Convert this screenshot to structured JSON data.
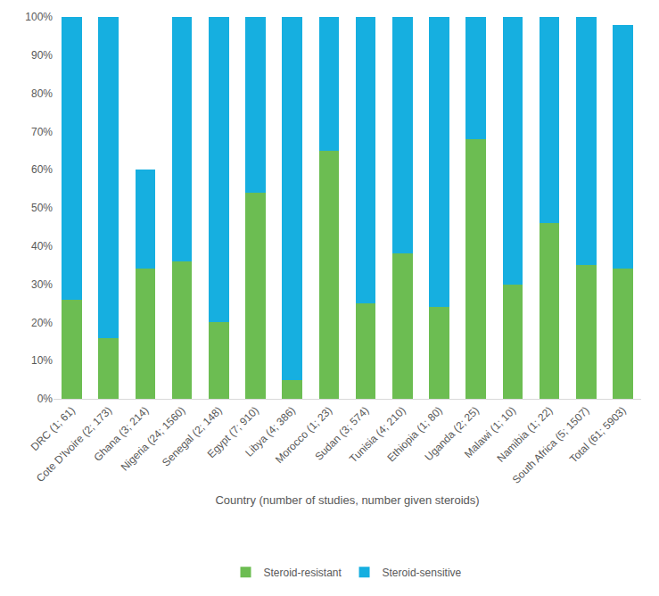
{
  "chart_data": {
    "type": "bar",
    "stacked": true,
    "grid": false,
    "legend": "bottom",
    "x_label": "Country (number of studies, number given steroids)",
    "categories": [
      "DRC (1; 61)",
      "Cote D'Ivoire (2; 173)",
      "Ghana (3; 214)",
      "Nigeria (24; 1560)",
      "Senegal (2; 148)",
      "Egypt (7; 910)",
      "Libya (4; 386)",
      "Morocco (1; 23)",
      "Sudan (3; 574)",
      "Tunisia (4; 210)",
      "Ethiopia (1; 80)",
      "Uganda (2; 25)",
      "Malawi (1; 10)",
      "Namibia (1; 22)",
      "South Africa (5; 1507)",
      "Total (61; 5903)"
    ],
    "series": [
      {
        "name": "Steroid-resistant",
        "color": "#6cbd52",
        "values": [
          26,
          16,
          34,
          36,
          20,
          54,
          5,
          65,
          25,
          38,
          24,
          68,
          30,
          46,
          35,
          34
        ]
      },
      {
        "name": "Steroid-sensitive",
        "color": "#16afe0",
        "values": [
          74,
          84,
          26,
          64,
          80,
          46,
          95,
          35,
          75,
          62,
          76,
          32,
          70,
          54,
          65,
          64
        ]
      }
    ],
    "ylim": [
      0,
      100
    ],
    "yticks": [
      {
        "value": 0,
        "label": "0%"
      },
      {
        "value": 10,
        "label": "10%"
      },
      {
        "value": 20,
        "label": "20%"
      },
      {
        "value": 30,
        "label": "30%"
      },
      {
        "value": 40,
        "label": "40%"
      },
      {
        "value": 50,
        "label": "50%"
      },
      {
        "value": 60,
        "label": "60%"
      },
      {
        "value": 70,
        "label": "70%"
      },
      {
        "value": 80,
        "label": "80%"
      },
      {
        "value": 90,
        "label": "90%"
      },
      {
        "value": 100,
        "label": "100%"
      }
    ]
  }
}
